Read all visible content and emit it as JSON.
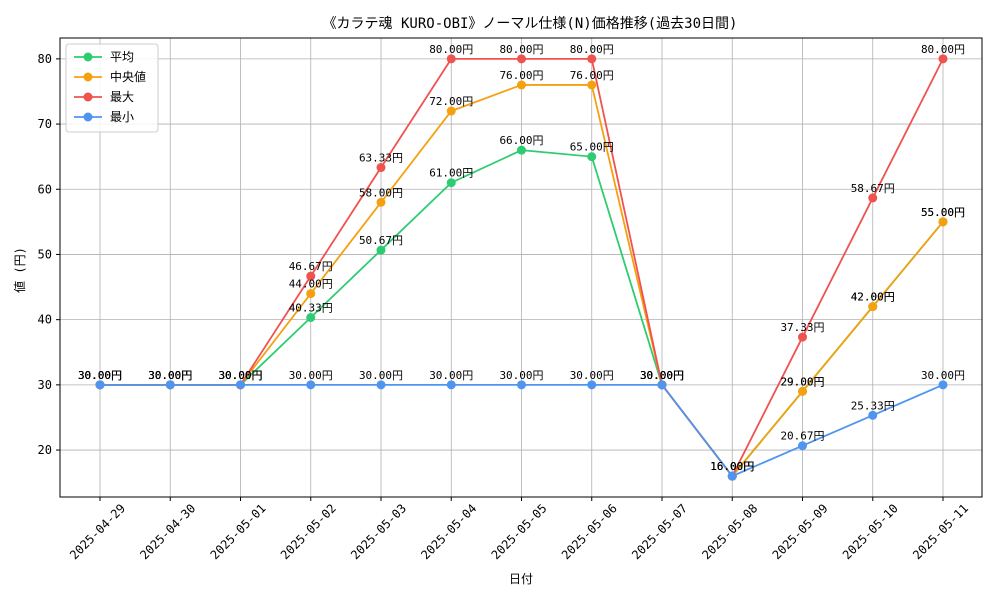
{
  "chart_data": {
    "type": "line",
    "title": "《カラテ魂 KURO-OBI》ノーマル仕様(N)価格推移(過去30日間)",
    "xlabel": "日付",
    "ylabel": "値 (円)",
    "ylim": [
      12.8,
      83.2
    ],
    "yticks": [
      20,
      30,
      40,
      50,
      60,
      70,
      80
    ],
    "grid": true,
    "legend_position": "top-left",
    "value_suffix": "円",
    "categories": [
      "2025-04-29",
      "2025-04-30",
      "2025-05-01",
      "2025-05-02",
      "2025-05-03",
      "2025-05-04",
      "2025-05-05",
      "2025-05-06",
      "2025-05-07",
      "2025-05-08",
      "2025-05-09",
      "2025-05-10",
      "2025-05-11"
    ],
    "series": [
      {
        "name": "平均",
        "color": "#2ecc71",
        "values": [
          30,
          30,
          30,
          40.33,
          50.67,
          61,
          66,
          65,
          30,
          16,
          29,
          42,
          55
        ]
      },
      {
        "name": "中央値",
        "color": "#f5a10f",
        "values": [
          30,
          30,
          30,
          44,
          58,
          72,
          76,
          76,
          30,
          16,
          29,
          42,
          55
        ]
      },
      {
        "name": "最大",
        "color": "#f0524f",
        "values": [
          30,
          30,
          30,
          46.67,
          63.33,
          80,
          80,
          80,
          30,
          16,
          37.33,
          58.67,
          80
        ]
      },
      {
        "name": "最小",
        "color": "#4f95ef",
        "values": [
          30,
          30,
          30,
          30,
          30,
          30,
          30,
          30,
          30,
          16,
          20.67,
          25.33,
          30
        ]
      }
    ]
  }
}
